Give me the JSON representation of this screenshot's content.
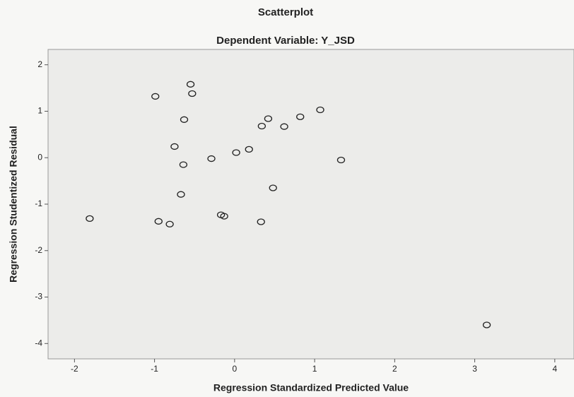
{
  "chart_data": {
    "type": "scatter",
    "title": "Scatterplot",
    "subtitle": "Dependent Variable: Y_JSD",
    "x_label": "Regression Standardized Predicted Value",
    "y_label": "Regression Studentized Residual",
    "color": "#222222",
    "x": [
      -1.81,
      -0.99,
      -0.55,
      -0.53,
      -0.63,
      -0.75,
      -0.64,
      -0.67,
      -0.95,
      -0.81,
      -0.29,
      -0.17,
      -0.13,
      0.02,
      0.18,
      0.34,
      0.42,
      0.62,
      0.48,
      0.33,
      0.82,
      1.07,
      1.33,
      3.15
    ],
    "values": [
      -1.31,
      1.32,
      1.58,
      1.38,
      0.82,
      0.24,
      -0.15,
      -0.79,
      -1.37,
      -1.43,
      -0.02,
      -1.23,
      -1.26,
      0.11,
      0.18,
      0.68,
      0.84,
      0.67,
      -0.65,
      -1.38,
      0.88,
      1.03,
      -0.05,
      -3.6
    ],
    "xlim": [
      -2.33,
      4.24
    ],
    "ylim": [
      -4.33,
      2.33
    ],
    "xticks": [
      -2,
      -1,
      0,
      1,
      2,
      3,
      4
    ],
    "yticks": [
      2,
      1,
      0,
      -1,
      -2,
      -3,
      -4
    ]
  }
}
